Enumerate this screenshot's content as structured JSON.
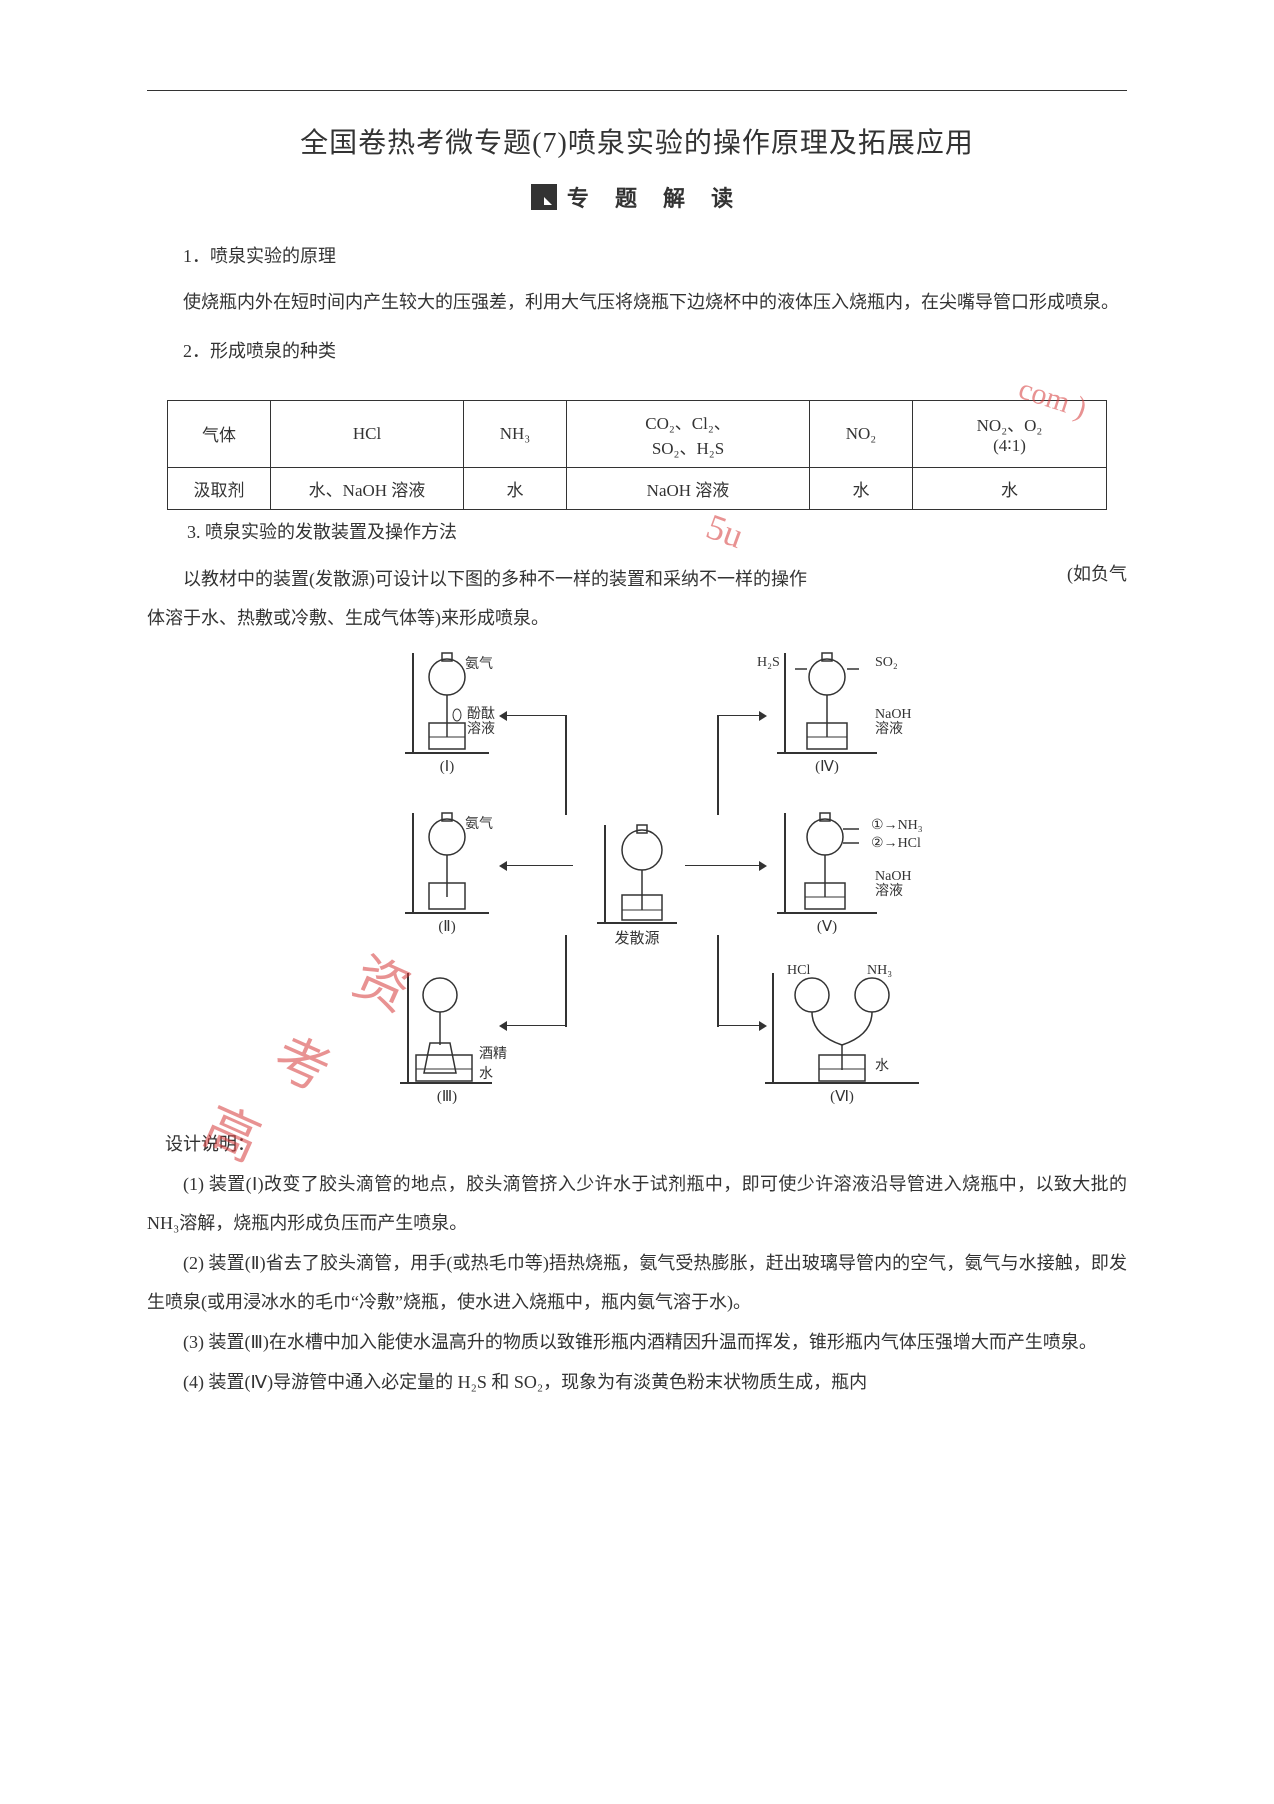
{
  "title": "全国卷热考微专题(7)喷泉实验的操作原理及拓展应用",
  "banner": "专 题 解 读",
  "sec1": {
    "head": "1．喷泉实验的原理",
    "para": "使烧瓶内外在短时间内产生较大的压强差，利用大气压将烧瓶下边烧杯中的液体压入烧瓶内，在尖嘴导管口形成喷泉。"
  },
  "sec2": {
    "head": "2．形成喷泉的种类"
  },
  "table": {
    "row1_label": "气体",
    "row2_label": "汲取剂",
    "c1": "HCl",
    "c2": "NH₃",
    "c3a": "CO₂、Cl₂、",
    "c3b": "SO₂、H₂S",
    "c4": "NO₂",
    "c5a": "NO₂、O₂",
    "c5b": "(4∶1)",
    "r2c1": "水、NaOH 溶液",
    "r2c2": "水",
    "r2c3": "NaOH 溶液",
    "r2c4": "水",
    "r2c5": "水"
  },
  "sec3": {
    "head": "3. 喷泉实验的发散装置及操作方法",
    "para_main": "以教材中的装置(发散源)可设计以下图的多种不一样的装置和采纳不一样的操作",
    "para_note": "(如负气",
    "para_tail": "体溶于水、热敷或冷敷、生成气体等)来形成喷泉。"
  },
  "diagram": {
    "center": "发散源",
    "I": "(Ⅰ)",
    "II": "(Ⅱ)",
    "III": "(Ⅲ)",
    "IV": "(Ⅳ)",
    "V": "(Ⅴ)",
    "VI": "(Ⅵ)",
    "I_g": "氨气",
    "I_s": "酚酞\n溶液",
    "II_g": "氨气",
    "III_a": "酒精",
    "III_b": "水",
    "IV_l": "H₂S",
    "IV_r": "SO₂",
    "IV_s": "NaOH\n溶液",
    "V_a": "NH₃",
    "V_b": "HCl",
    "V_s": "NaOH\n溶液",
    "VI_l": "HCl",
    "VI_r": "NH₃",
    "VI_s": "水"
  },
  "design_head": "设计说明：",
  "d1": "(1) 装置(Ⅰ)改变了胶头滴管的地点，胶头滴管挤入少许水于试剂瓶中，即可使少许溶液沿导管进入烧瓶中，以致大批的 NH₃溶解，烧瓶内形成负压而产生喷泉。",
  "d2": "(2) 装置(Ⅱ)省去了胶头滴管，用手(或热毛巾等)捂热烧瓶，氨气受热膨胀，赶出玻璃导管内的空气，氨气与水接触，即发生喷泉(或用浸冰水的毛巾“冷敷”烧瓶，使水进入烧瓶中，瓶内氨气溶于水)。",
  "d3": "(3) 装置(Ⅲ)在水槽中加入能使水温高升的物质以致锥形瓶内酒精因升温而挥发，锥形瓶内气体压强增大而产生喷泉。",
  "d4": "(4) 装置(Ⅳ)导游管中通入必定量的 H₂S 和 SO₂，现象为有淡黄色粉末状物质生成，瓶内",
  "watermarks": {
    "w1": "com )",
    "w2": "5u",
    "w3": "资",
    "w4": "考",
    "w5": "高"
  },
  "colors": {
    "text": "#333333",
    "watermark": "#d63a3a",
    "border": "#333333",
    "bg": "#ffffff"
  }
}
